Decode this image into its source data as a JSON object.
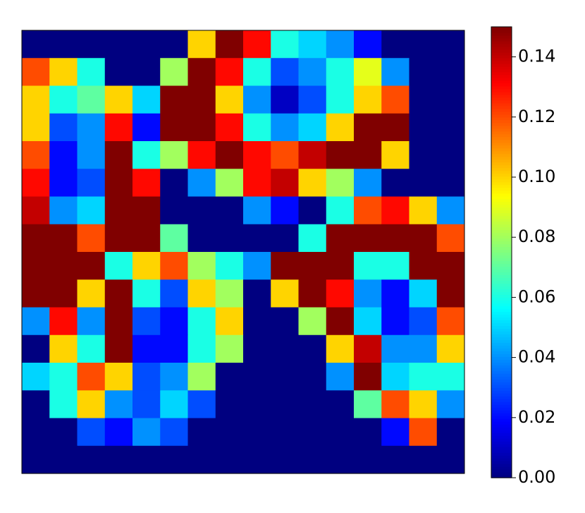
{
  "chart_data": {
    "type": "heatmap",
    "colormap": "jet",
    "values": [
      [
        0,
        0,
        0,
        0,
        0,
        0,
        0.1,
        0.15,
        0.13,
        0.06,
        0.05,
        0.04,
        0.02,
        0,
        0,
        0
      ],
      [
        0.12,
        0.1,
        0.06,
        0,
        0,
        0.08,
        0.15,
        0.13,
        0.06,
        0.03,
        0.04,
        0.06,
        0.09,
        0.04,
        0,
        0
      ],
      [
        0.1,
        0.06,
        0.07,
        0.1,
        0.05,
        0.15,
        0.15,
        0.1,
        0.04,
        0.01,
        0.03,
        0.06,
        0.1,
        0.12,
        0,
        0
      ],
      [
        0.1,
        0.03,
        0.04,
        0.13,
        0.02,
        0.15,
        0.15,
        0.13,
        0.06,
        0.04,
        0.05,
        0.1,
        0.15,
        0.15,
        0,
        0
      ],
      [
        0.12,
        0.02,
        0.04,
        0.15,
        0.06,
        0.08,
        0.13,
        0.15,
        0.13,
        0.12,
        0.14,
        0.15,
        0.15,
        0.1,
        0,
        0
      ],
      [
        0.13,
        0.02,
        0.03,
        0.15,
        0.13,
        0,
        0.04,
        0.08,
        0.13,
        0.14,
        0.1,
        0.08,
        0.04,
        0,
        0,
        0
      ],
      [
        0.14,
        0.04,
        0.05,
        0.15,
        0.15,
        0,
        0,
        0,
        0.04,
        0.02,
        0,
        0.06,
        0.12,
        0.13,
        0.1,
        0.04
      ],
      [
        0.15,
        0.15,
        0.12,
        0.15,
        0.15,
        0.07,
        0,
        0,
        0,
        0,
        0.06,
        0.15,
        0.15,
        0.15,
        0.15,
        0.12
      ],
      [
        0.15,
        0.15,
        0.15,
        0.06,
        0.1,
        0.12,
        0.08,
        0.06,
        0.04,
        0.15,
        0.15,
        0.15,
        0.06,
        0.06,
        0.15,
        0.15
      ],
      [
        0.15,
        0.15,
        0.1,
        0.15,
        0.06,
        0.03,
        0.1,
        0.08,
        0,
        0.1,
        0.15,
        0.13,
        0.04,
        0.02,
        0.05,
        0.15
      ],
      [
        0.04,
        0.13,
        0.04,
        0.15,
        0.03,
        0.02,
        0.06,
        0.1,
        0,
        0,
        0.08,
        0.15,
        0.05,
        0.02,
        0.03,
        0.12
      ],
      [
        0,
        0.1,
        0.06,
        0.15,
        0.02,
        0.02,
        0.06,
        0.08,
        0,
        0,
        0,
        0.1,
        0.14,
        0.04,
        0.04,
        0.1
      ],
      [
        0.05,
        0.06,
        0.12,
        0.1,
        0.03,
        0.04,
        0.08,
        0,
        0,
        0,
        0,
        0.04,
        0.15,
        0.05,
        0.06,
        0.06
      ],
      [
        0,
        0.06,
        0.1,
        0.04,
        0.03,
        0.05,
        0.03,
        0,
        0,
        0,
        0,
        0,
        0.07,
        0.12,
        0.1,
        0.04
      ],
      [
        0,
        0,
        0.03,
        0.02,
        0.04,
        0.03,
        0,
        0,
        0,
        0,
        0,
        0,
        0,
        0.02,
        0.12,
        0
      ],
      [
        0,
        0,
        0,
        0,
        0,
        0,
        0,
        0,
        0,
        0,
        0,
        0,
        0,
        0,
        0,
        0
      ]
    ],
    "clim": [
      0,
      0.15
    ],
    "colorbar_ticks": [
      {
        "value": 0,
        "label": "0.00"
      },
      {
        "value": 0.02,
        "label": "0.02"
      },
      {
        "value": 0.04,
        "label": "0.04"
      },
      {
        "value": 0.06,
        "label": "0.06"
      },
      {
        "value": 0.08,
        "label": "0.08"
      },
      {
        "value": 0.1,
        "label": "0.10"
      },
      {
        "value": 0.12,
        "label": "0.12"
      },
      {
        "value": 0.14,
        "label": "0.14"
      }
    ]
  }
}
